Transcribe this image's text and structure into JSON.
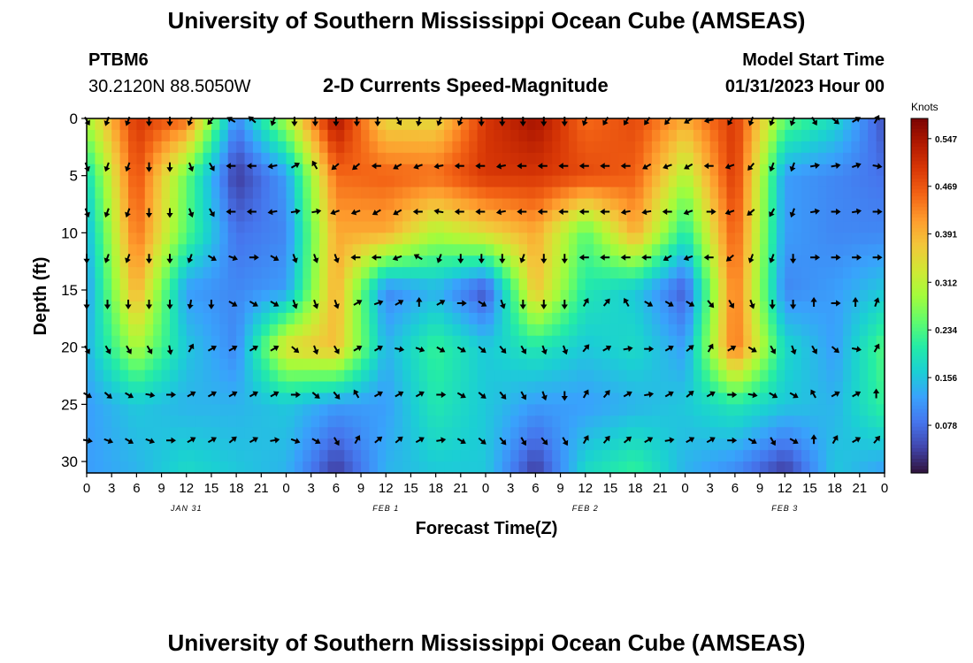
{
  "header": {
    "title": "University of Southern Mississippi Ocean Cube (AMSEAS)",
    "station": "PTBM6",
    "coordinates": "30.2120N  88.5050W",
    "plot_title": "2-D Currents Speed-Magnitude",
    "model_label": "Model Start Time",
    "model_time": "01/31/2023 Hour 00"
  },
  "footer": {
    "title": "University of Southern Mississippi Ocean Cube (AMSEAS)"
  },
  "chart_data": {
    "type": "heatmap",
    "title": "2-D Currents Speed-Magnitude",
    "xlabel": "Forecast Time(Z)",
    "ylabel": "Depth (ft)",
    "xticks": [
      "0",
      "3",
      "6",
      "9",
      "12",
      "15",
      "18",
      "21",
      "0",
      "3",
      "6",
      "9",
      "12",
      "15",
      "18",
      "21",
      "0",
      "3",
      "6",
      "9",
      "12",
      "15",
      "18",
      "21",
      "0",
      "3",
      "6",
      "9",
      "12",
      "15",
      "18",
      "21",
      "0"
    ],
    "date_labels": [
      {
        "label": "JAN 31",
        "tick_index": 4
      },
      {
        "label": "FEB 1",
        "tick_index": 12
      },
      {
        "label": "FEB 2",
        "tick_index": 20
      },
      {
        "label": "FEB 3",
        "tick_index": 28
      }
    ],
    "yticks": [
      0,
      5,
      10,
      15,
      20,
      25,
      30
    ],
    "ylim": [
      0,
      31
    ],
    "xlim_hours": [
      0,
      96
    ],
    "colorbar": {
      "label": "Knots",
      "ticks": [
        "0.547",
        "0.469",
        "0.391",
        "0.312",
        "0.234",
        "0.156",
        "0.078"
      ],
      "min": 0.0,
      "max": 0.58,
      "colors": [
        "#30123b",
        "#4145ab",
        "#4675ed",
        "#39a2fc",
        "#1bcfd4",
        "#24eca6",
        "#61fc6c",
        "#a4fc3b",
        "#d1e834",
        "#f3c63a",
        "#fe9b2d",
        "#f36315",
        "#d93806",
        "#b11901",
        "#7a0402"
      ]
    },
    "grid_times": [
      0,
      6,
      12,
      18,
      24,
      30,
      36,
      42,
      48,
      54,
      60,
      66,
      72,
      78,
      84,
      90,
      96
    ],
    "grid_depths": [
      0,
      5,
      10,
      15,
      20,
      25,
      31
    ],
    "speed_knots": [
      [
        0.3,
        0.5,
        0.45,
        0.1,
        0.3,
        0.55,
        0.35,
        0.35,
        0.5,
        0.55,
        0.45,
        0.48,
        0.4,
        0.5,
        0.25,
        0.18,
        0.05
      ],
      [
        0.18,
        0.48,
        0.25,
        0.03,
        0.12,
        0.45,
        0.46,
        0.45,
        0.5,
        0.5,
        0.48,
        0.46,
        0.3,
        0.5,
        0.12,
        0.1,
        0.08
      ],
      [
        0.14,
        0.45,
        0.24,
        0.08,
        0.1,
        0.4,
        0.4,
        0.3,
        0.35,
        0.4,
        0.24,
        0.4,
        0.2,
        0.47,
        0.12,
        0.1,
        0.1
      ],
      [
        0.12,
        0.4,
        0.12,
        0.1,
        0.12,
        0.4,
        0.1,
        0.14,
        0.05,
        0.38,
        0.2,
        0.16,
        0.06,
        0.45,
        0.1,
        0.12,
        0.16
      ],
      [
        0.14,
        0.3,
        0.16,
        0.1,
        0.35,
        0.38,
        0.14,
        0.22,
        0.16,
        0.2,
        0.16,
        0.18,
        0.12,
        0.45,
        0.18,
        0.12,
        0.24
      ],
      [
        0.12,
        0.16,
        0.14,
        0.14,
        0.16,
        0.12,
        0.12,
        0.2,
        0.16,
        0.12,
        0.12,
        0.14,
        0.16,
        0.2,
        0.16,
        0.14,
        0.22
      ],
      [
        0.12,
        0.14,
        0.18,
        0.16,
        0.14,
        0.03,
        0.14,
        0.16,
        0.16,
        0.03,
        0.18,
        0.22,
        0.14,
        0.1,
        0.03,
        0.16,
        0.12
      ]
    ],
    "arrow_times": [
      0,
      2.5,
      5,
      7.5,
      10,
      12.5,
      15,
      17.5,
      20,
      22.5,
      25,
      27.5,
      30,
      32.5,
      35,
      37.5,
      40,
      42.5,
      45,
      47.5,
      50,
      52.5,
      55,
      57.5,
      60,
      62.5,
      65,
      67.5,
      70,
      72.5,
      75,
      77.5,
      80,
      82.5,
      85,
      87.5,
      90,
      92.5,
      95
    ],
    "arrow_depths": [
      0,
      4,
      8,
      12,
      16,
      20,
      24,
      28
    ],
    "arrow_direction_deg": [
      [
        150,
        200,
        200,
        180,
        180,
        200,
        220,
        300,
        310,
        200,
        180,
        180,
        180,
        180,
        180,
        150,
        190,
        200,
        200,
        180,
        180,
        180,
        180,
        180,
        200,
        210,
        210,
        215,
        220,
        240,
        260,
        210,
        200,
        200,
        200,
        150,
        130,
        60,
        30
      ],
      [
        160,
        200,
        200,
        180,
        180,
        160,
        150,
        270,
        270,
        260,
        60,
        330,
        230,
        230,
        270,
        240,
        250,
        260,
        270,
        270,
        260,
        270,
        270,
        270,
        270,
        270,
        270,
        240,
        250,
        240,
        270,
        250,
        220,
        200,
        200,
        80,
        80,
        70,
        100
      ],
      [
        160,
        200,
        200,
        180,
        180,
        160,
        150,
        270,
        270,
        260,
        80,
        80,
        250,
        250,
        240,
        240,
        270,
        280,
        270,
        270,
        260,
        270,
        270,
        270,
        270,
        270,
        260,
        260,
        270,
        250,
        90,
        250,
        230,
        210,
        200,
        80,
        90,
        80,
        90
      ],
      [
        180,
        200,
        200,
        180,
        180,
        200,
        120,
        110,
        90,
        120,
        160,
        160,
        160,
        270,
        270,
        250,
        300,
        200,
        180,
        180,
        180,
        200,
        180,
        180,
        270,
        270,
        270,
        270,
        240,
        250,
        270,
        230,
        200,
        200,
        180,
        90,
        90,
        90,
        90
      ],
      [
        180,
        180,
        180,
        180,
        180,
        190,
        180,
        120,
        120,
        120,
        160,
        160,
        160,
        60,
        70,
        60,
        0,
        60,
        90,
        120,
        160,
        180,
        180,
        180,
        30,
        40,
        330,
        120,
        120,
        120,
        140,
        150,
        160,
        180,
        180,
        0,
        90,
        0,
        20
      ],
      [
        150,
        150,
        150,
        150,
        170,
        30,
        60,
        60,
        60,
        60,
        130,
        160,
        150,
        60,
        60,
        100,
        110,
        120,
        120,
        130,
        140,
        150,
        160,
        160,
        40,
        60,
        80,
        90,
        60,
        50,
        30,
        60,
        120,
        150,
        160,
        150,
        130,
        100,
        30
      ],
      [
        120,
        130,
        120,
        100,
        90,
        60,
        60,
        60,
        60,
        60,
        90,
        130,
        140,
        330,
        60,
        60,
        60,
        90,
        120,
        130,
        140,
        150,
        160,
        180,
        30,
        40,
        60,
        80,
        60,
        50,
        60,
        90,
        100,
        120,
        120,
        330,
        60,
        60,
        0
      ],
      [
        100,
        110,
        120,
        110,
        90,
        60,
        60,
        50,
        60,
        80,
        110,
        120,
        150,
        30,
        50,
        50,
        60,
        80,
        120,
        130,
        140,
        150,
        140,
        150,
        30,
        40,
        50,
        60,
        80,
        60,
        60,
        90,
        120,
        150,
        120,
        0,
        30,
        60,
        40
      ]
    ]
  }
}
